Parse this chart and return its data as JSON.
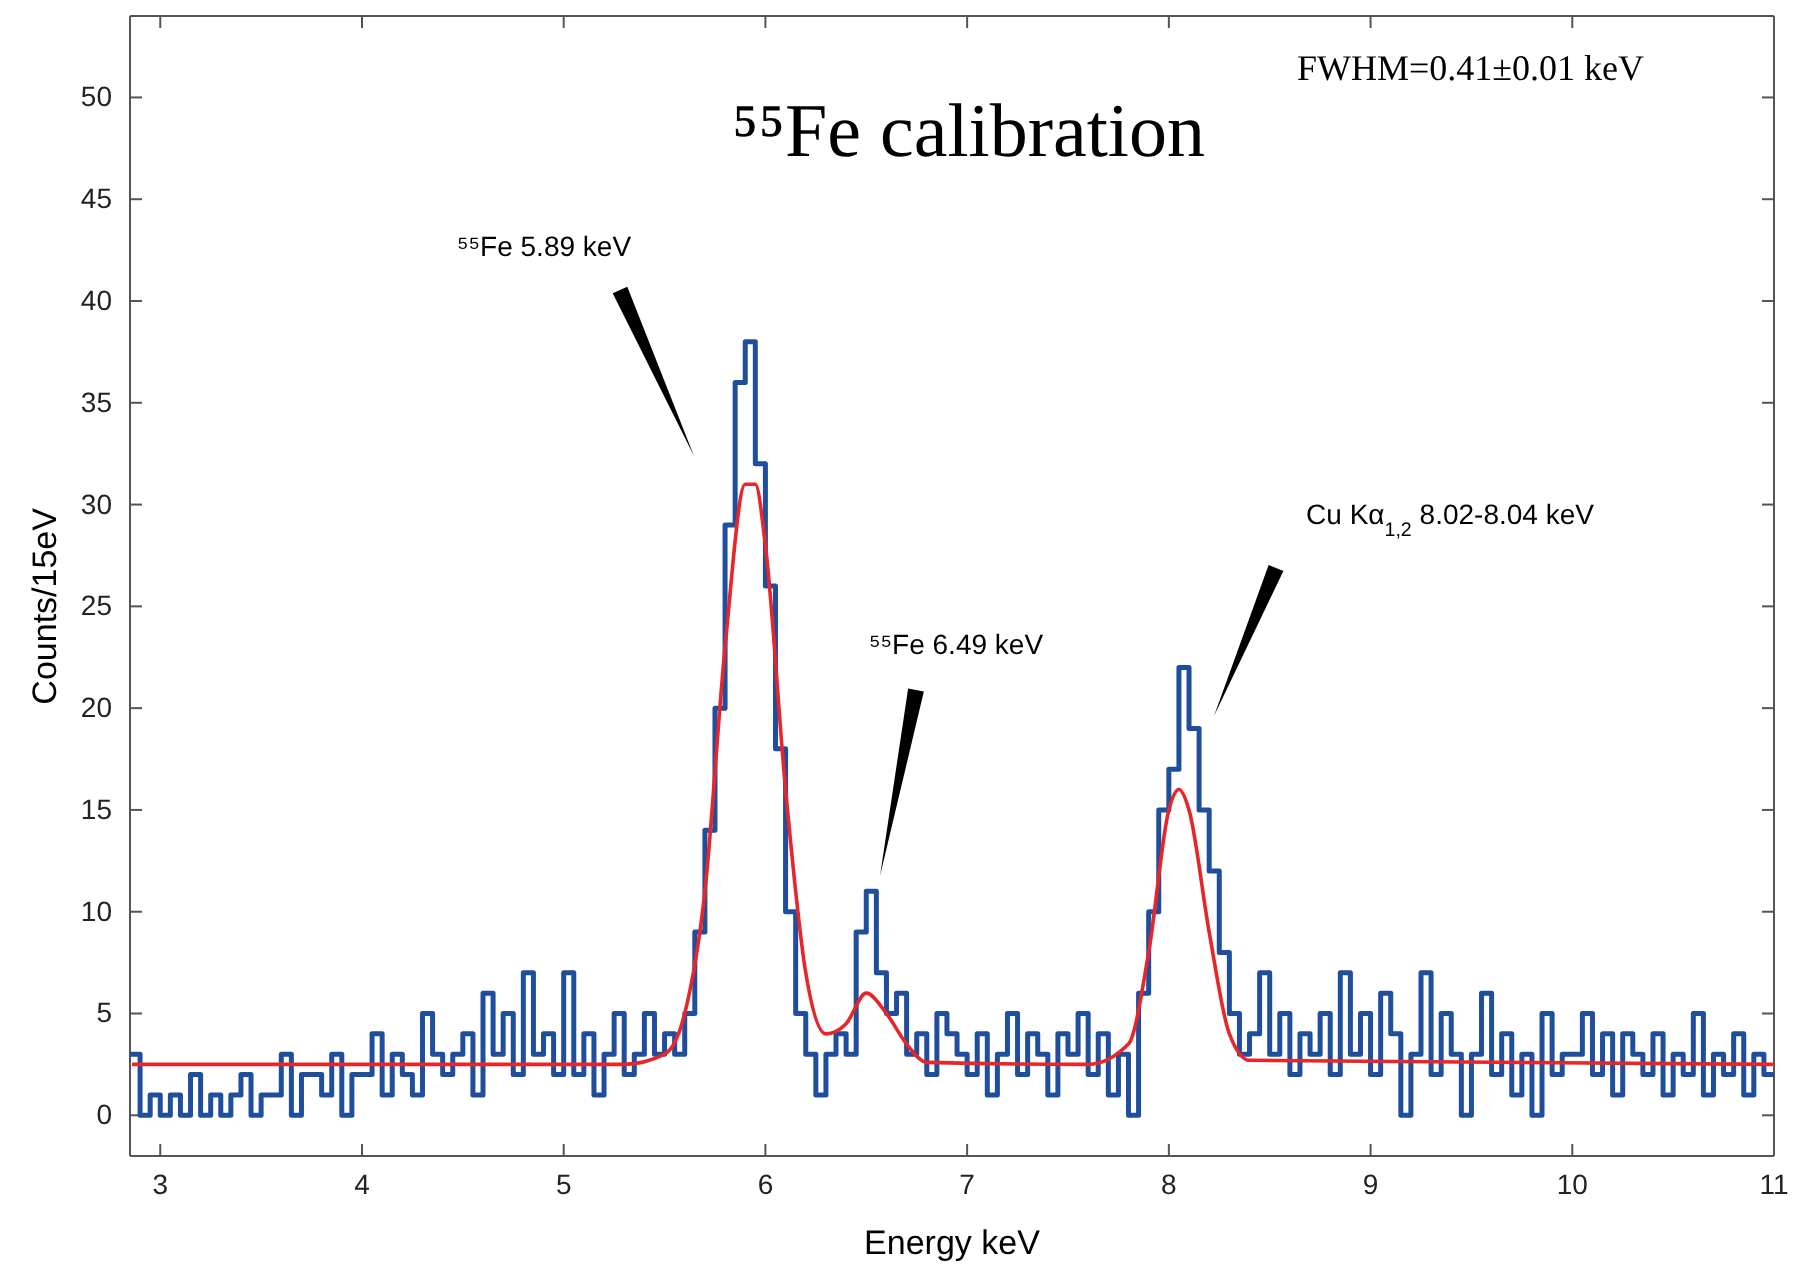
{
  "chart_data": {
    "type": "step",
    "title": "⁵⁵Fe calibration",
    "xlabel": "Energy keV",
    "ylabel": "Counts/15eV",
    "xlim": [
      2.85,
      11
    ],
    "xticks": [
      3,
      4,
      5,
      6,
      7,
      8,
      9,
      10,
      11
    ],
    "ylim": [
      -2,
      54
    ],
    "yticks": [
      0,
      5,
      10,
      15,
      20,
      25,
      30,
      35,
      40,
      45,
      50
    ],
    "grid": false,
    "annotations": [
      "FWHM=0.41±0.01 keV",
      "⁵⁵Fe 5.89 keV",
      "⁵⁵Fe 6.49 keV",
      "Cu Kα$_{1,2}$ 8.02-8.04 keV"
    ],
    "series": [
      {
        "color": "#1f4e9c",
        "x": [
          2.85,
          2.9,
          2.95,
          3,
          3.05,
          3.1,
          3.15,
          3.2,
          3.25,
          3.3,
          3.35,
          3.4,
          3.45,
          3.5,
          3.55,
          3.6,
          3.65,
          3.7,
          3.75,
          3.8,
          3.85,
          3.9,
          3.95,
          4,
          4.05,
          4.1,
          4.15,
          4.2,
          4.25,
          4.3,
          4.35,
          4.4,
          4.45,
          4.5,
          4.55,
          4.6,
          4.65,
          4.7,
          4.75,
          4.8,
          4.85,
          4.9,
          4.95,
          5,
          5.05,
          5.1,
          5.15,
          5.2,
          5.25,
          5.3,
          5.35,
          5.4,
          5.45,
          5.5,
          5.55,
          5.6,
          5.65,
          5.7,
          5.75,
          5.8,
          5.85,
          5.9,
          5.95,
          6,
          6.05,
          6.1,
          6.15,
          6.2,
          6.25,
          6.3,
          6.35,
          6.4,
          6.45,
          6.5,
          6.55,
          6.6,
          6.65,
          6.7,
          6.75,
          6.8,
          6.85,
          6.9,
          6.95,
          7,
          7.05,
          7.1,
          7.15,
          7.2,
          7.25,
          7.3,
          7.35,
          7.4,
          7.45,
          7.5,
          7.55,
          7.6,
          7.65,
          7.7,
          7.75,
          7.8,
          7.85,
          7.9,
          7.95,
          8,
          8.05,
          8.1,
          8.15,
          8.2,
          8.25,
          8.3,
          8.35,
          8.4,
          8.45,
          8.5,
          8.55,
          8.6,
          8.65,
          8.7,
          8.75,
          8.8,
          8.85,
          8.9,
          8.95,
          9,
          9.05,
          9.1,
          9.15,
          9.2,
          9.25,
          9.3,
          9.35,
          9.4,
          9.45,
          9.5,
          9.55,
          9.6,
          9.65,
          9.7,
          9.75,
          9.8,
          9.85,
          9.9,
          9.95,
          10,
          10.05,
          10.1,
          10.15,
          10.2,
          10.25,
          10.3,
          10.35,
          10.4,
          10.45,
          10.5,
          10.55,
          10.6,
          10.65,
          10.7,
          10.75,
          10.8,
          10.85,
          10.9,
          10.95,
          11
        ],
        "values": [
          3,
          0,
          1,
          0,
          1,
          0,
          2,
          0,
          1,
          0,
          1,
          2,
          0,
          1,
          1,
          3,
          0,
          2,
          2,
          1,
          3,
          0,
          2,
          2,
          4,
          1,
          3,
          2,
          1,
          5,
          3,
          2,
          3,
          4,
          1,
          6,
          3,
          5,
          2,
          7,
          3,
          4,
          2,
          7,
          2,
          4,
          1,
          3,
          5,
          2,
          3,
          5,
          3,
          4,
          3,
          5,
          9,
          14,
          20,
          29,
          36,
          38,
          32,
          26,
          18,
          10,
          5,
          3,
          1,
          3,
          4,
          3,
          9,
          11,
          7,
          5,
          6,
          3,
          4,
          2,
          5,
          4,
          3,
          2,
          4,
          1,
          3,
          5,
          2,
          4,
          3,
          1,
          4,
          3,
          5,
          2,
          4,
          1,
          3,
          0,
          6,
          10,
          15,
          17,
          22,
          19,
          15,
          12,
          8,
          5,
          3,
          4,
          7,
          3,
          5,
          2,
          4,
          3,
          5,
          2,
          7,
          3,
          5,
          2,
          6,
          4,
          0,
          3,
          7,
          2,
          5,
          3,
          0,
          3,
          6,
          2,
          4,
          1,
          3,
          0,
          5,
          2,
          3,
          3,
          5,
          2,
          4,
          1,
          4,
          3,
          2,
          4,
          1,
          3,
          2,
          5,
          1,
          3,
          2,
          4,
          1,
          3,
          2,
          2
        ]
      },
      {
        "type": "line",
        "color": "#e8262a",
        "x": [
          2.86,
          5.3,
          5.5,
          5.6,
          5.7,
          5.8,
          5.9,
          5.95,
          6,
          6.1,
          6.2,
          6.3,
          6.4,
          6.5,
          6.6,
          6.7,
          6.8,
          7.6,
          7.8,
          7.9,
          8,
          8.05,
          8.1,
          8.2,
          8.3,
          8.4,
          11
        ],
        "values": [
          2.5,
          2.5,
          3,
          5,
          11,
          23,
          31,
          31,
          28,
          16,
          7,
          4,
          4.5,
          6,
          5,
          3.5,
          2.6,
          2.5,
          3.5,
          8,
          15,
          16,
          15,
          9,
          4,
          2.7,
          2.5
        ]
      }
    ]
  }
}
